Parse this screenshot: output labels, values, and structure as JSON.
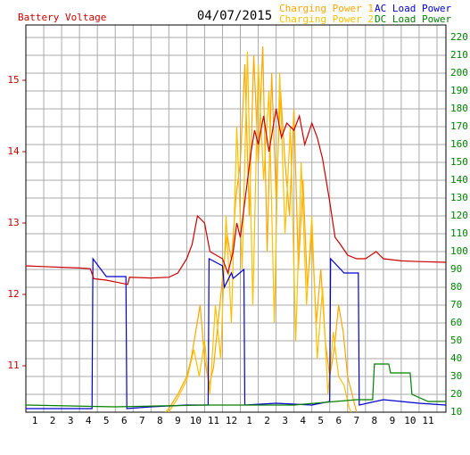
{
  "chart_data": {
    "type": "line",
    "title": "04/07/2015",
    "y_color": "#cc0000",
    "y2_color": "#008000",
    "grid": true,
    "xlim": [
      0,
      23.5
    ],
    "xticks": [
      {
        "value": 1,
        "label": "1"
      },
      {
        "value": 2,
        "label": "2"
      },
      {
        "value": 3,
        "label": "3"
      },
      {
        "value": 4,
        "label": "4"
      },
      {
        "value": 5,
        "label": "5"
      },
      {
        "value": 6,
        "label": "6"
      },
      {
        "value": 7,
        "label": "7"
      },
      {
        "value": 8,
        "label": "8"
      },
      {
        "value": 9,
        "label": "9"
      },
      {
        "value": 10,
        "label": "10"
      },
      {
        "value": 11,
        "label": "11"
      },
      {
        "value": 12,
        "label": "12"
      },
      {
        "value": 13,
        "label": "1"
      },
      {
        "value": 14,
        "label": "2"
      },
      {
        "value": 15,
        "label": "3"
      },
      {
        "value": 16,
        "label": "4"
      },
      {
        "value": 17,
        "label": "5"
      },
      {
        "value": 18,
        "label": "6"
      },
      {
        "value": 19,
        "label": "7"
      },
      {
        "value": 20,
        "label": "8"
      },
      {
        "value": 21,
        "label": "9"
      },
      {
        "value": 22,
        "label": "10"
      },
      {
        "value": 23,
        "label": "11"
      }
    ],
    "ylim": [
      10.35,
      15.775
    ],
    "yticks": [
      11,
      12,
      13,
      14,
      15
    ],
    "y2lim": [
      10,
      227
    ],
    "y2ticks": [
      10,
      20,
      30,
      40,
      50,
      60,
      70,
      80,
      90,
      100,
      110,
      120,
      130,
      140,
      150,
      160,
      170,
      180,
      190,
      200,
      210,
      220
    ],
    "series": [
      {
        "name": "Battery Voltage",
        "color": "#cc0000",
        "x": [
          0,
          1,
          2,
          3,
          3.6,
          3.8,
          4.5,
          5.7,
          5.8,
          7,
          8,
          8.5,
          9,
          9.3,
          9.6,
          10,
          10.3,
          11,
          11.3,
          11.6,
          11.8,
          12,
          12.3,
          12.6,
          12.8,
          13,
          13.3,
          13.6,
          14,
          14.3,
          14.6,
          15,
          15.3,
          15.6,
          16,
          16.3,
          16.6,
          17,
          17.3,
          17.6,
          18,
          18.5,
          19,
          19.6,
          20,
          21,
          22,
          23.5
        ],
        "values": [
          12.4,
          12.39,
          12.38,
          12.37,
          12.36,
          12.22,
          12.2,
          12.14,
          12.24,
          12.23,
          12.24,
          12.3,
          12.5,
          12.7,
          13.1,
          13.0,
          12.6,
          12.5,
          12.3,
          12.6,
          13.0,
          12.8,
          13.4,
          14.0,
          14.3,
          14.1,
          14.5,
          14.0,
          14.6,
          14.2,
          14.4,
          14.3,
          14.5,
          14.1,
          14.4,
          14.2,
          13.9,
          13.3,
          12.8,
          12.7,
          12.55,
          12.5,
          12.5,
          12.6,
          12.5,
          12.47,
          12.46,
          12.45
        ]
      },
      {
        "name": "Charging Power 1",
        "color": "#ffa500",
        "axis": "y2",
        "x": [
          6.5,
          7,
          7.5,
          8,
          8.5,
          9,
          9.25,
          9.5,
          9.75,
          10,
          10.25,
          10.5,
          10.75,
          11,
          11.25,
          11.5,
          11.75,
          12,
          12.25,
          12.5,
          12.75,
          13,
          13.25,
          13.5,
          13.75,
          14,
          14.25,
          14.5,
          14.75,
          15,
          15.25,
          15.5,
          15.75,
          16,
          16.25,
          16.5,
          16.75,
          17,
          17.25,
          17.5,
          17.75,
          18,
          18.25,
          18.5,
          18.75
        ],
        "values": [
          0,
          2,
          6,
          12,
          20,
          30,
          40,
          55,
          70,
          40,
          25,
          35,
          60,
          85,
          110,
          95,
          130,
          150,
          205,
          120,
          210,
          150,
          215,
          100,
          200,
          130,
          190,
          150,
          120,
          180,
          90,
          140,
          80,
          110,
          60,
          90,
          50,
          30,
          45,
          70,
          55,
          30,
          20,
          10,
          0
        ]
      },
      {
        "name": "Charging Power 2",
        "color": "#ffc000",
        "axis": "y2",
        "x": [
          7,
          7.5,
          8,
          8.5,
          9,
          9.4,
          9.7,
          10,
          10.3,
          10.6,
          10.9,
          11.2,
          11.5,
          11.8,
          12.1,
          12.4,
          12.7,
          13,
          13.3,
          13.6,
          13.9,
          14.2,
          14.5,
          14.8,
          15.1,
          15.4,
          15.7,
          16,
          16.3,
          16.6,
          16.9,
          17.2,
          17.5,
          17.8,
          18.1,
          18.4,
          18.8
        ],
        "values": [
          0,
          4,
          10,
          18,
          28,
          45,
          30,
          50,
          20,
          70,
          40,
          120,
          60,
          170,
          90,
          212,
          70,
          205,
          140,
          190,
          60,
          200,
          110,
          170,
          50,
          150,
          70,
          120,
          40,
          80,
          20,
          55,
          30,
          25,
          12,
          5,
          0
        ]
      },
      {
        "name": "AC Load Power",
        "color": "#0000cc",
        "axis": "y2",
        "x": [
          0,
          3.7,
          3.75,
          4.5,
          5.6,
          5.65,
          7,
          9,
          10.2,
          10.25,
          11,
          11.1,
          11.5,
          11.6,
          12.2,
          12.25,
          14,
          16,
          17,
          17.05,
          17.8,
          18.6,
          18.65,
          20,
          21,
          22,
          23.5
        ],
        "values": [
          12,
          12,
          96,
          86,
          86,
          12,
          13,
          14,
          14,
          96,
          92,
          80,
          88,
          85,
          90,
          14,
          15,
          14,
          16,
          96,
          88,
          88,
          14,
          17,
          16,
          15,
          14
        ]
      },
      {
        "name": "DC Load Power",
        "color": "#008000",
        "axis": "y2",
        "x": [
          0,
          5,
          10,
          15,
          18.5,
          19.4,
          19.5,
          20.3,
          20.4,
          21.5,
          21.6,
          22.5,
          23.5
        ],
        "values": [
          14,
          13,
          14,
          14,
          17,
          17,
          37,
          37,
          32,
          32,
          20,
          16,
          16
        ]
      }
    ]
  }
}
